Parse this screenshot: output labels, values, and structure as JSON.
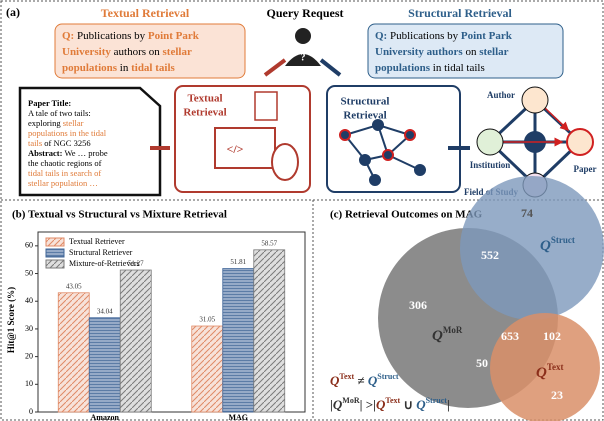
{
  "panel_a": {
    "label": "(a)",
    "query_request": "Query Request",
    "textual_heading": "Textual Retrieval",
    "structural_heading": "Structural Retrieval",
    "textual_query": [
      [
        {
          "text": "Q:",
          "highlight": true
        },
        {
          "text": " Publications by ",
          "highlight": false
        },
        {
          "text": "Point Park",
          "highlight": true
        }
      ],
      [
        {
          "text": "University",
          "highlight": true
        },
        {
          "text": " authors on ",
          "highlight": false
        },
        {
          "text": "stellar",
          "highlight": true
        }
      ],
      [
        {
          "text": "populations",
          "highlight": true
        },
        {
          "text": " in ",
          "highlight": false
        },
        {
          "text": "tidal tails",
          "highlight": true
        }
      ]
    ],
    "structural_query": [
      [
        {
          "text": "Q:",
          "highlight": true
        },
        {
          "text": " Publications by ",
          "highlight": false
        },
        {
          "text": "Point Park",
          "highlight": true
        }
      ],
      [
        {
          "text": "University authors",
          "highlight": true
        },
        {
          "text": " on ",
          "highlight": false
        },
        {
          "text": "stellar",
          "highlight": true
        }
      ],
      [
        {
          "text": "populations",
          "highlight": true
        },
        {
          "text": " in tidal tails",
          "highlight": false
        }
      ]
    ],
    "document": [
      [
        {
          "text": "Paper Title",
          "highlight": false
        },
        {
          "text": ":",
          "highlight": false
        }
      ],
      [
        {
          "text": "A tale of two tails:",
          "highlight": false
        }
      ],
      [
        {
          "text": "exploring ",
          "highlight": false
        },
        {
          "text": "stellar",
          "highlight": true
        }
      ],
      [
        {
          "text": "populations in the tidal",
          "highlight": true
        }
      ],
      [
        {
          "text": "tails",
          "highlight": true
        },
        {
          "text": " of NGC 3256",
          "highlight": false
        }
      ],
      [
        {
          "text": "Abstract:",
          "highlight": false
        },
        {
          "text": " We … probe",
          "highlight": false
        }
      ],
      [
        {
          "text": "the chaotic regions of",
          "highlight": false
        }
      ],
      [
        {
          "text": "tidal tails in search of",
          "highlight": true
        }
      ],
      [
        {
          "text": "stellar population …",
          "highlight": true
        }
      ]
    ],
    "textual_box": [
      "Textual",
      "Retrieval"
    ],
    "structural_box": [
      "Structural",
      "Retrieval"
    ],
    "graph_nodes": {
      "author": "Author",
      "institution": "Institution",
      "paper": "Paper",
      "field": "Field of Study"
    }
  },
  "chart_data": {
    "type": "bar",
    "title": "(b) Textual vs Structural vs Mixture Retrieval",
    "y_label": "Hit@1 Score (%)",
    "categories": [
      "Amazon",
      "MAG"
    ],
    "series": [
      {
        "name": "Textual Retriever",
        "color": "#e08a66",
        "values": [
          43.05,
          31.05
        ]
      },
      {
        "name": "Structural Retriever",
        "color": "#3f6597",
        "values": [
          34.04,
          51.81
        ]
      },
      {
        "name": "Mixture-of-Retrievers",
        "color": "#7a7a7a",
        "values": [
          51.27,
          58.57
        ]
      }
    ],
    "ylim": [
      0,
      65
    ],
    "yticks": [
      0,
      10,
      20,
      30,
      40,
      50,
      60
    ],
    "legend": "upper left"
  },
  "panel_c": {
    "title": "(c) Retrieval Outcomes on MAG",
    "regions": {
      "struct_only": 74,
      "mor_struct": 552,
      "mor_only": 306,
      "all": 653,
      "text_struct": 102,
      "mor_text": 50,
      "text_only": 23
    },
    "q": "Q",
    "struct": "Struct",
    "mor": "MoR",
    "text": "Text",
    "line1": [
      "Q",
      "Text",
      " ≠ ",
      "Q",
      "Struct"
    ],
    "line2": [
      "|",
      "Q",
      "MoR",
      "| >|",
      "Q",
      "Text",
      " ∪ ",
      "Q",
      "Struct",
      "|"
    ]
  }
}
